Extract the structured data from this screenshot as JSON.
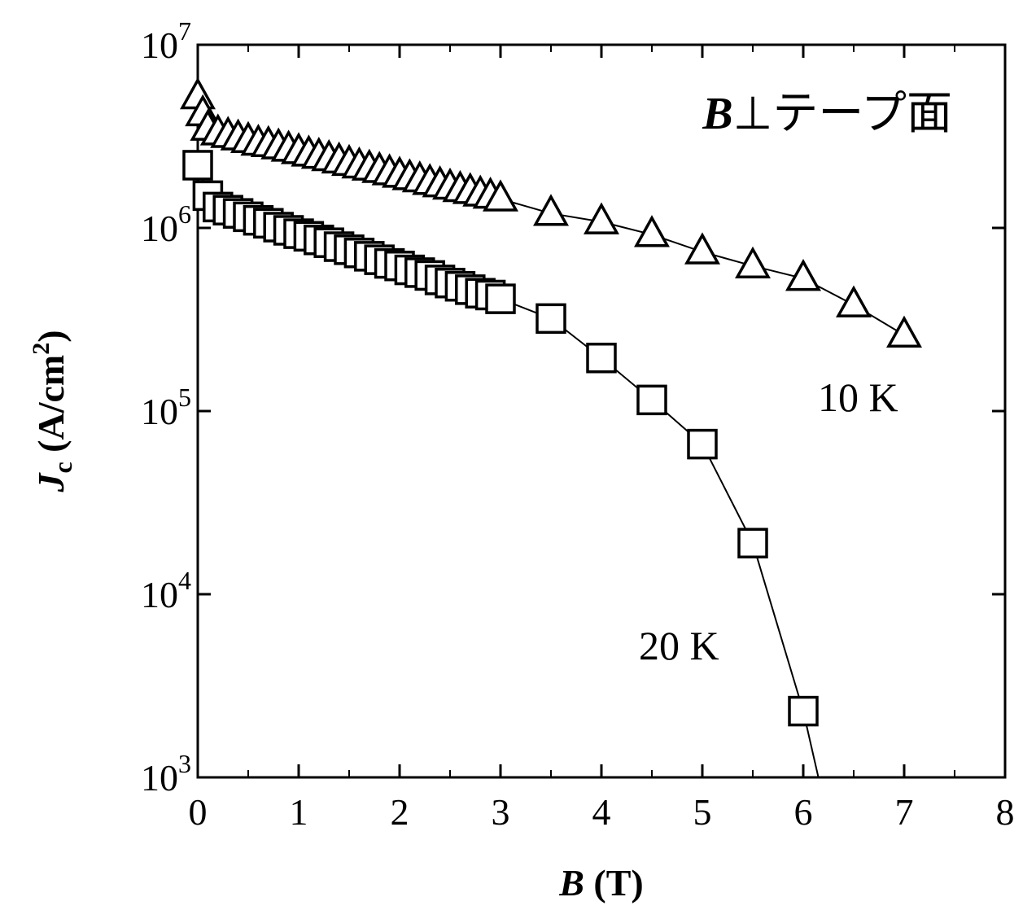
{
  "chart_data": {
    "type": "line",
    "title": "B⊥テープ面",
    "title_parts": {
      "symbol": "B",
      "rest": "⊥テープ面"
    },
    "xlabel": "B (T)",
    "xlabel_parts": {
      "symbol": "B",
      "unit": " (T)"
    },
    "ylabel": "Jc (A/cm2)",
    "ylabel_parts": {
      "symbol": "J",
      "sub": "c",
      "unit": " (A/cm",
      "sup": "2",
      "close": ")"
    },
    "xlim": [
      0,
      8
    ],
    "ylim": [
      1000,
      10000000
    ],
    "yscale": "log",
    "xticks": [
      "0",
      "1",
      "2",
      "3",
      "4",
      "5",
      "6",
      "7",
      "8"
    ],
    "yticks": [
      {
        "base": "10",
        "exp": "3"
      },
      {
        "base": "10",
        "exp": "4"
      },
      {
        "base": "10",
        "exp": "5"
      },
      {
        "base": "10",
        "exp": "6"
      },
      {
        "base": "10",
        "exp": "7"
      }
    ],
    "grid": false,
    "series": [
      {
        "name": "10 K",
        "marker": "triangle",
        "x": [
          0,
          0.05,
          0.1,
          0.2,
          0.3,
          0.4,
          0.5,
          0.6,
          0.7,
          0.8,
          0.9,
          1.0,
          1.1,
          1.2,
          1.3,
          1.4,
          1.5,
          1.6,
          1.7,
          1.8,
          1.9,
          2.0,
          2.1,
          2.2,
          2.3,
          2.4,
          2.5,
          2.6,
          2.7,
          2.8,
          2.9,
          3.0,
          3.5,
          4.0,
          4.5,
          5.0,
          5.5,
          6.0,
          6.5,
          7.0
        ],
        "y": [
          5200000,
          4200000,
          3500000,
          3300000,
          3200000,
          3100000,
          3000000,
          2900000,
          2850000,
          2770000,
          2690000,
          2610000,
          2530000,
          2460000,
          2390000,
          2320000,
          2250000,
          2180000,
          2120000,
          2060000,
          2000000,
          1940000,
          1880000,
          1830000,
          1770000,
          1720000,
          1670000,
          1620000,
          1580000,
          1530000,
          1490000,
          1440000,
          1200000,
          1080000,
          920000,
          740000,
          620000,
          530000,
          380000,
          260000
        ]
      },
      {
        "name": "20 K",
        "marker": "square",
        "x": [
          0,
          0.1,
          0.2,
          0.3,
          0.4,
          0.5,
          0.6,
          0.7,
          0.8,
          0.9,
          1.0,
          1.1,
          1.2,
          1.3,
          1.4,
          1.5,
          1.6,
          1.7,
          1.8,
          1.9,
          2.0,
          2.1,
          2.2,
          2.3,
          2.4,
          2.5,
          2.6,
          2.7,
          2.8,
          2.9,
          3.0,
          3.5,
          4.0,
          4.5,
          5.0,
          5.5,
          6.0
        ],
        "y": [
          2200000,
          1500000,
          1300000,
          1250000,
          1200000,
          1150000,
          1100000,
          1060000,
          1010000,
          970000,
          930000,
          900000,
          860000,
          830000,
          790000,
          760000,
          730000,
          700000,
          670000,
          640000,
          620000,
          590000,
          570000,
          550000,
          520000,
          500000,
          480000,
          460000,
          440000,
          430000,
          410000,
          320000,
          195000,
          115000,
          66000,
          19000,
          2300
        ],
        "line_extension": {
          "x": 6.15,
          "y": 1000
        }
      }
    ]
  }
}
